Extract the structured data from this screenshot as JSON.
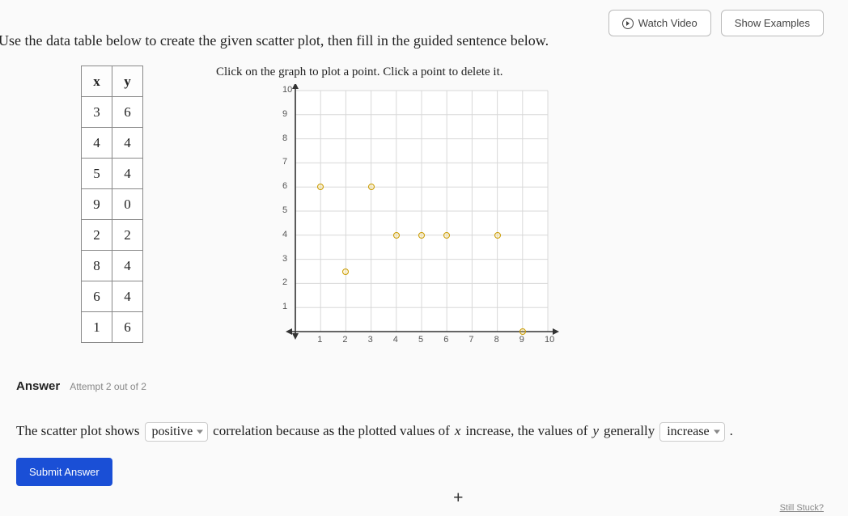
{
  "buttons": {
    "watch_video": "Watch Video",
    "show_examples": "Show Examples",
    "submit": "Submit Answer"
  },
  "prompt": "Use the data table below to create the given scatter plot, then fill in the guided sentence below.",
  "table": {
    "headers": [
      "x",
      "y"
    ],
    "rows": [
      [
        3,
        6
      ],
      [
        4,
        4
      ],
      [
        5,
        4
      ],
      [
        9,
        0
      ],
      [
        2,
        2
      ],
      [
        8,
        4
      ],
      [
        6,
        4
      ],
      [
        1,
        6
      ]
    ]
  },
  "graph": {
    "caption": "Click on the graph to plot a point. Click a point to delete it.",
    "xmin": 0,
    "xmax": 10,
    "ymin": 0,
    "ymax": 10,
    "xtick_step": 1,
    "ytick_step": 1,
    "grid_color": "#d8d8d8",
    "axis_color": "#333333",
    "background_color": "#ffffff",
    "tick_fontsize": 11,
    "point_border_color": "#c99a00",
    "point_fill_color": "rgba(255,220,100,0.25)",
    "points": [
      {
        "x": 1,
        "y": 6
      },
      {
        "x": 3,
        "y": 6
      },
      {
        "x": 2,
        "y": 2.5
      },
      {
        "x": 4,
        "y": 4
      },
      {
        "x": 5,
        "y": 4
      },
      {
        "x": 6,
        "y": 4
      },
      {
        "x": 8,
        "y": 4
      },
      {
        "x": 9,
        "y": 0
      }
    ]
  },
  "answer": {
    "label": "Answer",
    "attempt": "Attempt 2 out of 2",
    "sentence_parts": {
      "p1": "The scatter plot shows",
      "sel1": "positive",
      "p2": "correlation because as the plotted values of",
      "var1": "x",
      "p3": "increase, the values of",
      "var2": "y",
      "p4": "generally",
      "sel2": "increase",
      "p5": "."
    }
  },
  "footer": {
    "plus": "+",
    "still_stuck": "Still Stuck?"
  }
}
